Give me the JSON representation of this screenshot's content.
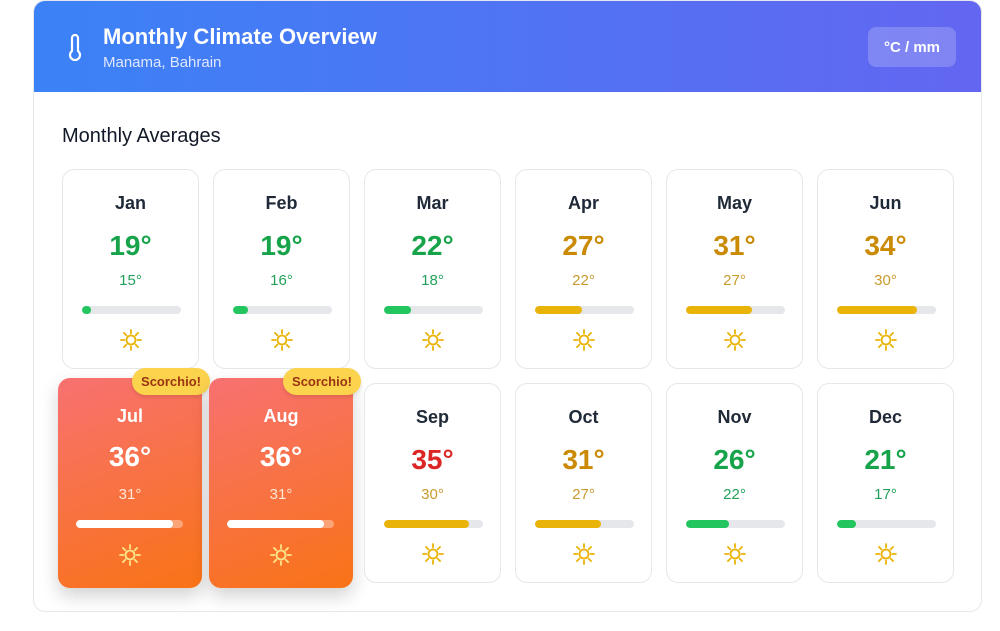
{
  "header": {
    "title": "Monthly Climate Overview",
    "location": "Manama, Bahrain",
    "unit_toggle": "°C / mm",
    "icon": "thermometer-icon"
  },
  "section_title": "Monthly Averages",
  "months": [
    {
      "name": "Jan",
      "high": "19°",
      "low": "15°",
      "level": 0.09,
      "tone": "green"
    },
    {
      "name": "Feb",
      "high": "19°",
      "low": "16°",
      "level": 0.15,
      "tone": "green"
    },
    {
      "name": "Mar",
      "high": "22°",
      "low": "18°",
      "level": 0.27,
      "tone": "green"
    },
    {
      "name": "Apr",
      "high": "27°",
      "low": "22°",
      "level": 0.47,
      "tone": "amber"
    },
    {
      "name": "May",
      "high": "31°",
      "low": "27°",
      "level": 0.67,
      "tone": "amber"
    },
    {
      "name": "Jun",
      "high": "34°",
      "low": "30°",
      "level": 0.81,
      "tone": "amber"
    },
    {
      "name": "Jul",
      "high": "36°",
      "low": "31°",
      "level": 0.91,
      "tone": "hot",
      "badge": "Scorchio!"
    },
    {
      "name": "Aug",
      "high": "36°",
      "low": "31°",
      "level": 0.91,
      "tone": "hot",
      "badge": "Scorchio!"
    },
    {
      "name": "Sep",
      "high": "35°",
      "low": "30°",
      "level": 0.86,
      "tone": "red"
    },
    {
      "name": "Oct",
      "high": "31°",
      "low": "27°",
      "level": 0.67,
      "tone": "amber"
    },
    {
      "name": "Nov",
      "high": "26°",
      "low": "22°",
      "level": 0.43,
      "tone": "green"
    },
    {
      "name": "Dec",
      "high": "21°",
      "low": "17°",
      "level": 0.19,
      "tone": "green"
    }
  ],
  "colors": {
    "green": {
      "high": "#16a34a",
      "low": "#22a05a",
      "bar": "#22c55e"
    },
    "amber": {
      "high": "#ca8a04",
      "low": "#c99a2e",
      "bar": "#eab308"
    },
    "red": {
      "high": "#dc2626",
      "low": "#c99a2e",
      "bar": "#eab308"
    },
    "sun": "#eab308"
  }
}
